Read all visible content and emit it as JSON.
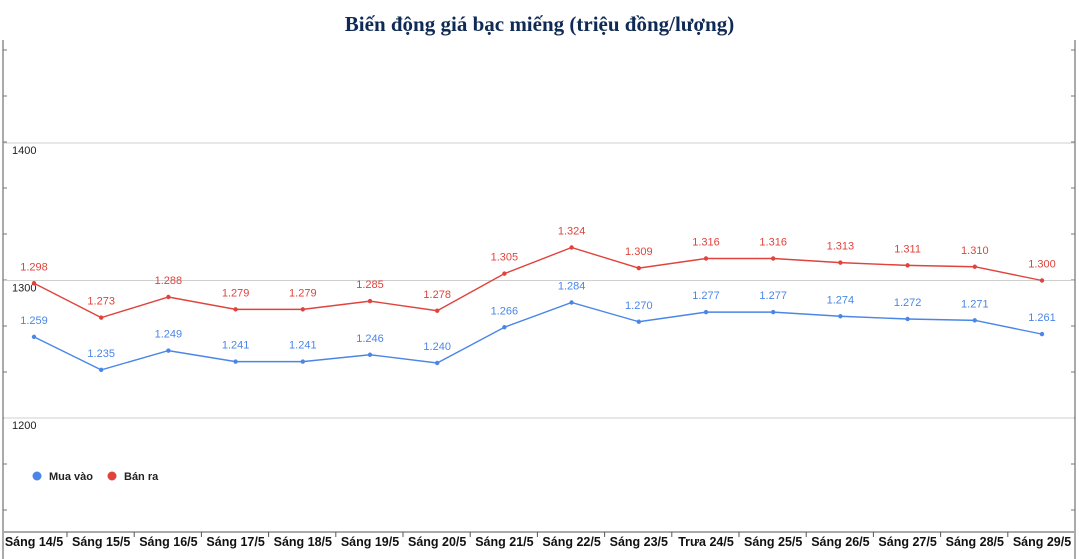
{
  "chart_data": {
    "type": "line",
    "title": "Biến động giá bạc miếng (triệu đồng/lượng)",
    "categories": [
      "Sáng 14/5",
      "Sáng 15/5",
      "Sáng 16/5",
      "Sáng 17/5",
      "Sáng 18/5",
      "Sáng 19/5",
      "Sáng 20/5",
      "Sáng 21/5",
      "Sáng 22/5",
      "Sáng 23/5",
      "Trưa 24/5",
      "Sáng 25/5",
      "Sáng 26/5",
      "Sáng 27/5",
      "Sáng 28/5",
      "Sáng 29/5"
    ],
    "series": [
      {
        "name": "Mua vào",
        "color": "#4a86e8",
        "values": [
          1259,
          1235,
          1249,
          1241,
          1241,
          1246,
          1240,
          1266,
          1284,
          1270,
          1277,
          1277,
          1274,
          1272,
          1271,
          1261
        ],
        "labels": [
          "1.259",
          "1.235",
          "1.249",
          "1.241",
          "1.241",
          "1.246",
          "1.240",
          "1.266",
          "1.284",
          "1.270",
          "1.277",
          "1.277",
          "1.274",
          "1.272",
          "1.271",
          "1.261"
        ]
      },
      {
        "name": "Bán ra",
        "color": "#e0433c",
        "values": [
          1298,
          1273,
          1288,
          1279,
          1279,
          1285,
          1278,
          1305,
          1324,
          1309,
          1316,
          1316,
          1313,
          1311,
          1310,
          1300
        ],
        "labels": [
          "1.298",
          "1.273",
          "1.288",
          "1.279",
          "1.279",
          "1.285",
          "1.278",
          "1.305",
          "1.324",
          "1.309",
          "1.316",
          "1.316",
          "1.313",
          "1.311",
          "1.310",
          "1.300"
        ]
      }
    ],
    "yticks": [
      "1400",
      "1300",
      "1200"
    ],
    "ylim": [
      1200,
      1400
    ],
    "grid": true,
    "legend": "bottom-left"
  }
}
